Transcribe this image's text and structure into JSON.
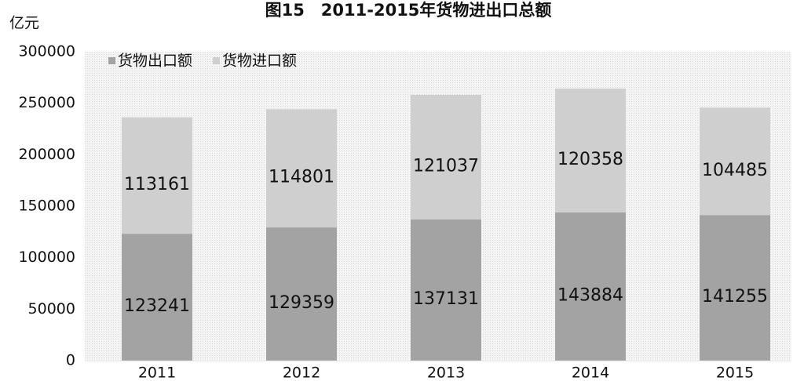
{
  "chart_data": {
    "type": "stacked_bar",
    "title": "图15　2011-2015年货物进出口总额",
    "y_label": "亿元",
    "categories": [
      "2011",
      "2012",
      "2013",
      "2014",
      "2015"
    ],
    "series": [
      {
        "name": "货物出口额",
        "color": "#a3a3a3",
        "values": [
          123241,
          129359,
          137131,
          143884,
          141255
        ]
      },
      {
        "name": "货物进口额",
        "color": "#cfcfcf",
        "values": [
          113161,
          114801,
          121037,
          120358,
          104485
        ]
      }
    ],
    "ylim": [
      0,
      300000
    ],
    "yticks": [
      0,
      50000,
      100000,
      150000,
      200000,
      250000,
      300000
    ],
    "grid": false,
    "legend": "upper left"
  }
}
